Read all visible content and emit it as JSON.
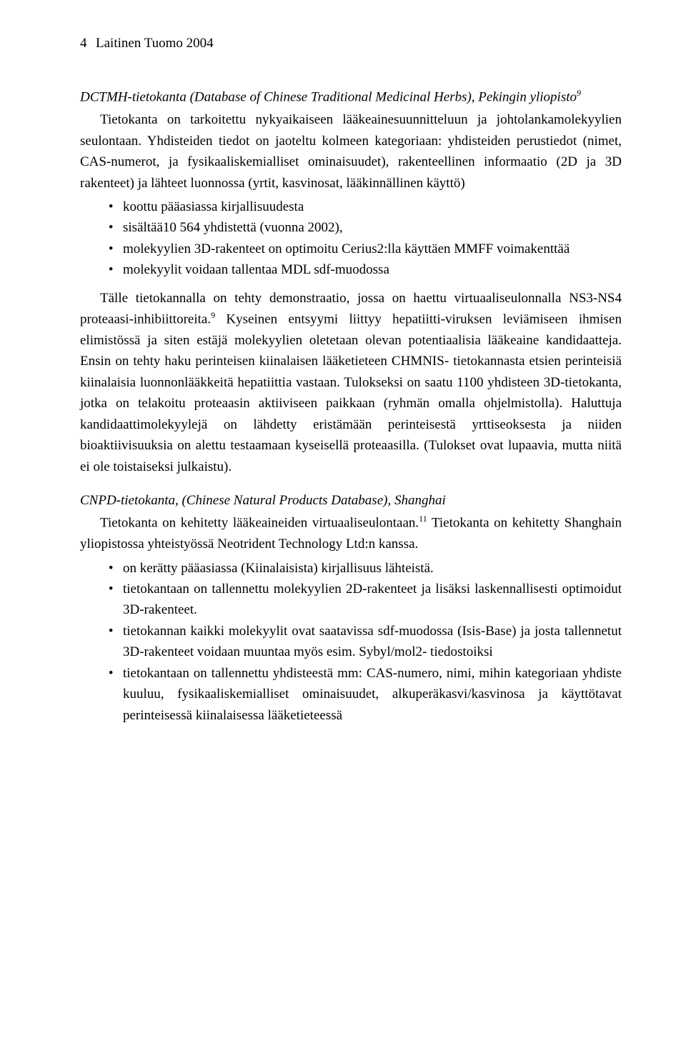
{
  "header": {
    "page_number": "4",
    "running_head": "Laitinen Tuomo 2004"
  },
  "section1": {
    "title_prefix": "DCTMH-tietokanta (Database of Chinese Traditional Medicinal Herbs), Pekingin yliopisto",
    "title_ref": "9",
    "p1": "Tietokanta on tarkoitettu nykyaikaiseen lääkeainesuunnitteluun ja johtolankamolekyylien seulontaan. Yhdisteiden tiedot on jaoteltu kolmeen kategoriaan: yhdisteiden perustiedot (nimet, CAS-numerot, ja fysikaaliskemialliset ominaisuudet), rakenteellinen informaatio (2D ja 3D rakenteet) ja lähteet luonnossa (yrtit, kasvinosat, lääkinnällinen käyttö)",
    "bullets": [
      "koottu pääasiassa kirjallisuudesta",
      "sisältää10 564 yhdistettä (vuonna 2002),",
      "molekyylien 3D-rakenteet on optimoitu Cerius2:lla käyttäen MMFF voimakenttää",
      "molekyylit voidaan tallentaa MDL sdf-muodossa"
    ],
    "p2a": "Tälle tietokannalla on tehty demonstraatio, jossa on haettu virtuaaliseulonnalla NS3-NS4 proteaasi-inhibiittoreita.",
    "p2_ref": "9",
    "p2b": " Kyseinen entsyymi liittyy hepatiitti-viruksen leviämiseen ihmisen elimistössä ja siten estäjä molekyylien oletetaan olevan potentiaalisia lääkeaine kandidaatteja. Ensin on tehty haku perinteisen kiinalaisen lääketieteen CHMNIS- tietokannasta etsien perinteisiä kiinalaisia luonnonlääkkeitä hepatiittia vastaan. Tulokseksi on saatu 1100 yhdisteen 3D-tietokanta, jotka on telakoitu proteaasin aktiiviseen paikkaan (ryhmän omalla ohjelmistolla). Haluttuja kandidaattimolekyylejä on lähdetty eristämään perinteisestä yrttiseoksesta ja niiden bioaktiivisuuksia on alettu testaamaan kyseisellä proteaasilla. (Tulokset ovat lupaavia, mutta niitä ei ole toistaiseksi julkaistu)."
  },
  "section2": {
    "title": "CNPD-tietokanta, (Chinese Natural Products Database), Shanghai",
    "p1a": "Tietokanta on kehitetty lääkeaineiden virtuaaliseulontaan.",
    "p1_ref": "11",
    "p1b": " Tietokanta on kehitetty Shanghain yliopistossa yhteistyössä Neotrident Technology Ltd:n kanssa.",
    "bullets": [
      "on kerätty pääasiassa (Kiinalaisista) kirjallisuus lähteistä.",
      "tietokantaan on tallennettu molekyylien 2D-rakenteet ja lisäksi laskennallisesti optimoidut 3D-rakenteet.",
      "tietokannan kaikki molekyylit ovat saatavissa sdf-muodossa (Isis-Base) ja josta tallennetut 3D-rakenteet voidaan muuntaa myös esim. Sybyl/mol2- tiedostoiksi",
      "tietokantaan on tallennettu yhdisteestä mm: CAS-numero, nimi, mihin kategoriaan yhdiste kuuluu, fysikaaliskemialliset ominaisuudet, alkuperäkasvi/kasvinosa ja käyttötavat perinteisessä kiinalaisessa lääketieteessä"
    ]
  }
}
